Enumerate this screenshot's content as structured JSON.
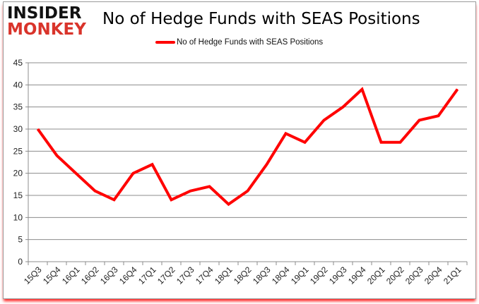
{
  "logo": {
    "line1": "INSIDER",
    "line2": "MONKEY"
  },
  "chart_data": {
    "type": "line",
    "title": "No of Hedge Funds with SEAS Positions",
    "categories": [
      "15Q3",
      "15Q4",
      "16Q1",
      "16Q2",
      "16Q3",
      "16Q4",
      "17Q1",
      "17Q2",
      "17Q3",
      "17Q4",
      "18Q1",
      "18Q2",
      "18Q3",
      "18Q4",
      "19Q1",
      "19Q2",
      "19Q3",
      "19Q4",
      "20Q1",
      "20Q2",
      "20Q3",
      "20Q4",
      "21Q1"
    ],
    "series": [
      {
        "name": "No of Hedge Funds with SEAS Positions",
        "color": "#ff0000",
        "values": [
          30,
          24,
          20,
          16,
          14,
          20,
          22,
          14,
          16,
          17,
          13,
          16,
          22,
          29,
          27,
          32,
          35,
          39,
          27,
          27,
          32,
          33,
          39
        ]
      }
    ],
    "ylim": [
      0,
      45
    ],
    "yticks": [
      0,
      5,
      10,
      15,
      20,
      25,
      30,
      35,
      40,
      45
    ],
    "grid": true,
    "legend": "top-center"
  }
}
